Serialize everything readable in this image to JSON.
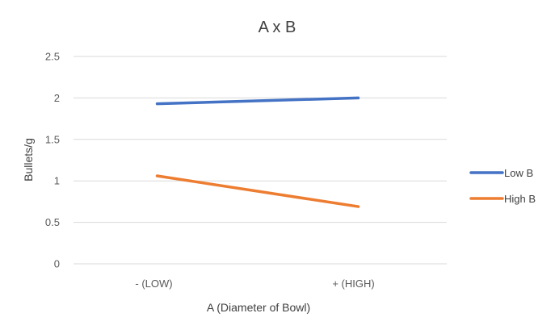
{
  "chart_data": {
    "type": "line",
    "title": "A x B",
    "xlabel": "A (Diameter of Bowl)",
    "ylabel": "Bullets/g",
    "categories": [
      "- (LOW)",
      "+ (HIGH)"
    ],
    "ylim": [
      0,
      2.5
    ],
    "yticks": [
      "0",
      "0.5",
      "1",
      "1.5",
      "2",
      "2.5"
    ],
    "grid": true,
    "legend": "right",
    "series": [
      {
        "name": "Low B",
        "values": [
          1.93,
          2.0
        ],
        "color": "#4472c4"
      },
      {
        "name": "High B",
        "values": [
          1.06,
          0.69
        ],
        "color": "#ed7d31"
      }
    ]
  }
}
